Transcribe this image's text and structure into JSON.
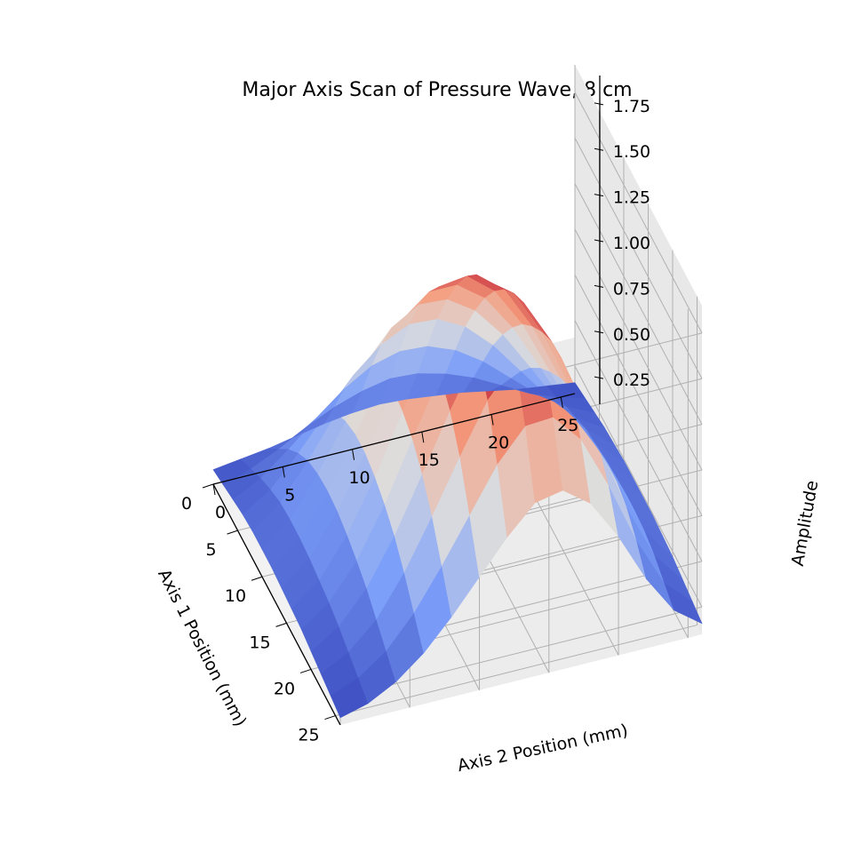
{
  "chart_data": {
    "type": "surface3d",
    "title": "Major Axis Scan of Pressure Wave, 8 cm",
    "xlabel": "Axis 1 Position (mm)",
    "ylabel": "Axis 2 Position (mm)",
    "zlabel": "Amplitude",
    "xlim": [
      0,
      26
    ],
    "ylim": [
      0,
      26
    ],
    "zlim": [
      0.1,
      1.9
    ],
    "x_ticks": [
      0,
      5,
      10,
      15,
      20,
      25
    ],
    "x_tick_labels": [
      "0",
      "5",
      "10",
      "15",
      "20",
      "25"
    ],
    "y_ticks": [
      0,
      5,
      10,
      15,
      20,
      25
    ],
    "y_tick_labels": [
      "0",
      "5",
      "10",
      "15",
      "20",
      "25"
    ],
    "z_ticks": [
      0.25,
      0.5,
      0.75,
      1.0,
      1.25,
      1.5,
      1.75
    ],
    "z_tick_labels": [
      "0.25",
      "0.50",
      "0.75",
      "1.00",
      "1.25",
      "1.50",
      "1.75"
    ],
    "colormap": "coolwarm",
    "colors": {
      "low": "#3b4cc0",
      "mid": "#dddddd",
      "high": "#b40426",
      "pane": "#f2f2f2",
      "grid": "#b0b0b0"
    },
    "grid": true,
    "surface": {
      "x": [
        0,
        2,
        4,
        6,
        8,
        10,
        12,
        14,
        16,
        18,
        20,
        22,
        24,
        26
      ],
      "y": [
        0,
        2,
        4,
        6,
        8,
        10,
        12,
        14,
        16,
        18,
        20,
        22,
        24,
        26
      ],
      "z": [
        [
          0.18,
          0.2,
          0.22,
          0.25,
          0.28,
          0.3,
          0.31,
          0.3,
          0.28,
          0.26,
          0.23,
          0.2,
          0.18,
          0.16
        ],
        [
          0.2,
          0.25,
          0.32,
          0.4,
          0.47,
          0.52,
          0.55,
          0.54,
          0.5,
          0.44,
          0.36,
          0.28,
          0.22,
          0.18
        ],
        [
          0.22,
          0.3,
          0.42,
          0.55,
          0.67,
          0.76,
          0.8,
          0.79,
          0.73,
          0.63,
          0.5,
          0.37,
          0.27,
          0.2
        ],
        [
          0.24,
          0.34,
          0.5,
          0.68,
          0.85,
          0.98,
          1.05,
          1.04,
          0.96,
          0.82,
          0.64,
          0.46,
          0.31,
          0.22
        ],
        [
          0.25,
          0.37,
          0.56,
          0.78,
          1.0,
          1.17,
          1.26,
          1.25,
          1.15,
          0.98,
          0.76,
          0.53,
          0.35,
          0.23
        ],
        [
          0.25,
          0.38,
          0.59,
          0.84,
          1.1,
          1.31,
          1.43,
          1.43,
          1.32,
          1.12,
          0.86,
          0.59,
          0.37,
          0.24
        ],
        [
          0.25,
          0.38,
          0.6,
          0.87,
          1.16,
          1.41,
          1.56,
          1.58,
          1.46,
          1.24,
          0.94,
          0.63,
          0.39,
          0.24
        ],
        [
          0.24,
          0.37,
          0.59,
          0.87,
          1.18,
          1.46,
          1.65,
          1.69,
          1.57,
          1.33,
          1.01,
          0.67,
          0.4,
          0.24
        ],
        [
          0.23,
          0.35,
          0.56,
          0.84,
          1.16,
          1.46,
          1.69,
          1.76,
          1.65,
          1.4,
          1.06,
          0.7,
          0.41,
          0.24
        ],
        [
          0.22,
          0.33,
          0.52,
          0.79,
          1.11,
          1.42,
          1.68,
          1.79,
          1.7,
          1.45,
          1.09,
          0.71,
          0.41,
          0.23
        ],
        [
          0.2,
          0.3,
          0.47,
          0.72,
          1.02,
          1.33,
          1.61,
          1.76,
          1.7,
          1.46,
          1.1,
          0.71,
          0.4,
          0.22
        ],
        [
          0.18,
          0.26,
          0.4,
          0.62,
          0.89,
          1.18,
          1.45,
          1.62,
          1.6,
          1.39,
          1.05,
          0.67,
          0.37,
          0.2
        ],
        [
          0.16,
          0.22,
          0.33,
          0.5,
          0.72,
          0.96,
          1.2,
          1.37,
          1.38,
          1.22,
          0.93,
          0.59,
          0.32,
          0.18
        ],
        [
          0.14,
          0.18,
          0.26,
          0.38,
          0.54,
          0.72,
          0.9,
          1.05,
          1.08,
          0.97,
          0.75,
          0.48,
          0.27,
          0.16
        ]
      ]
    }
  }
}
